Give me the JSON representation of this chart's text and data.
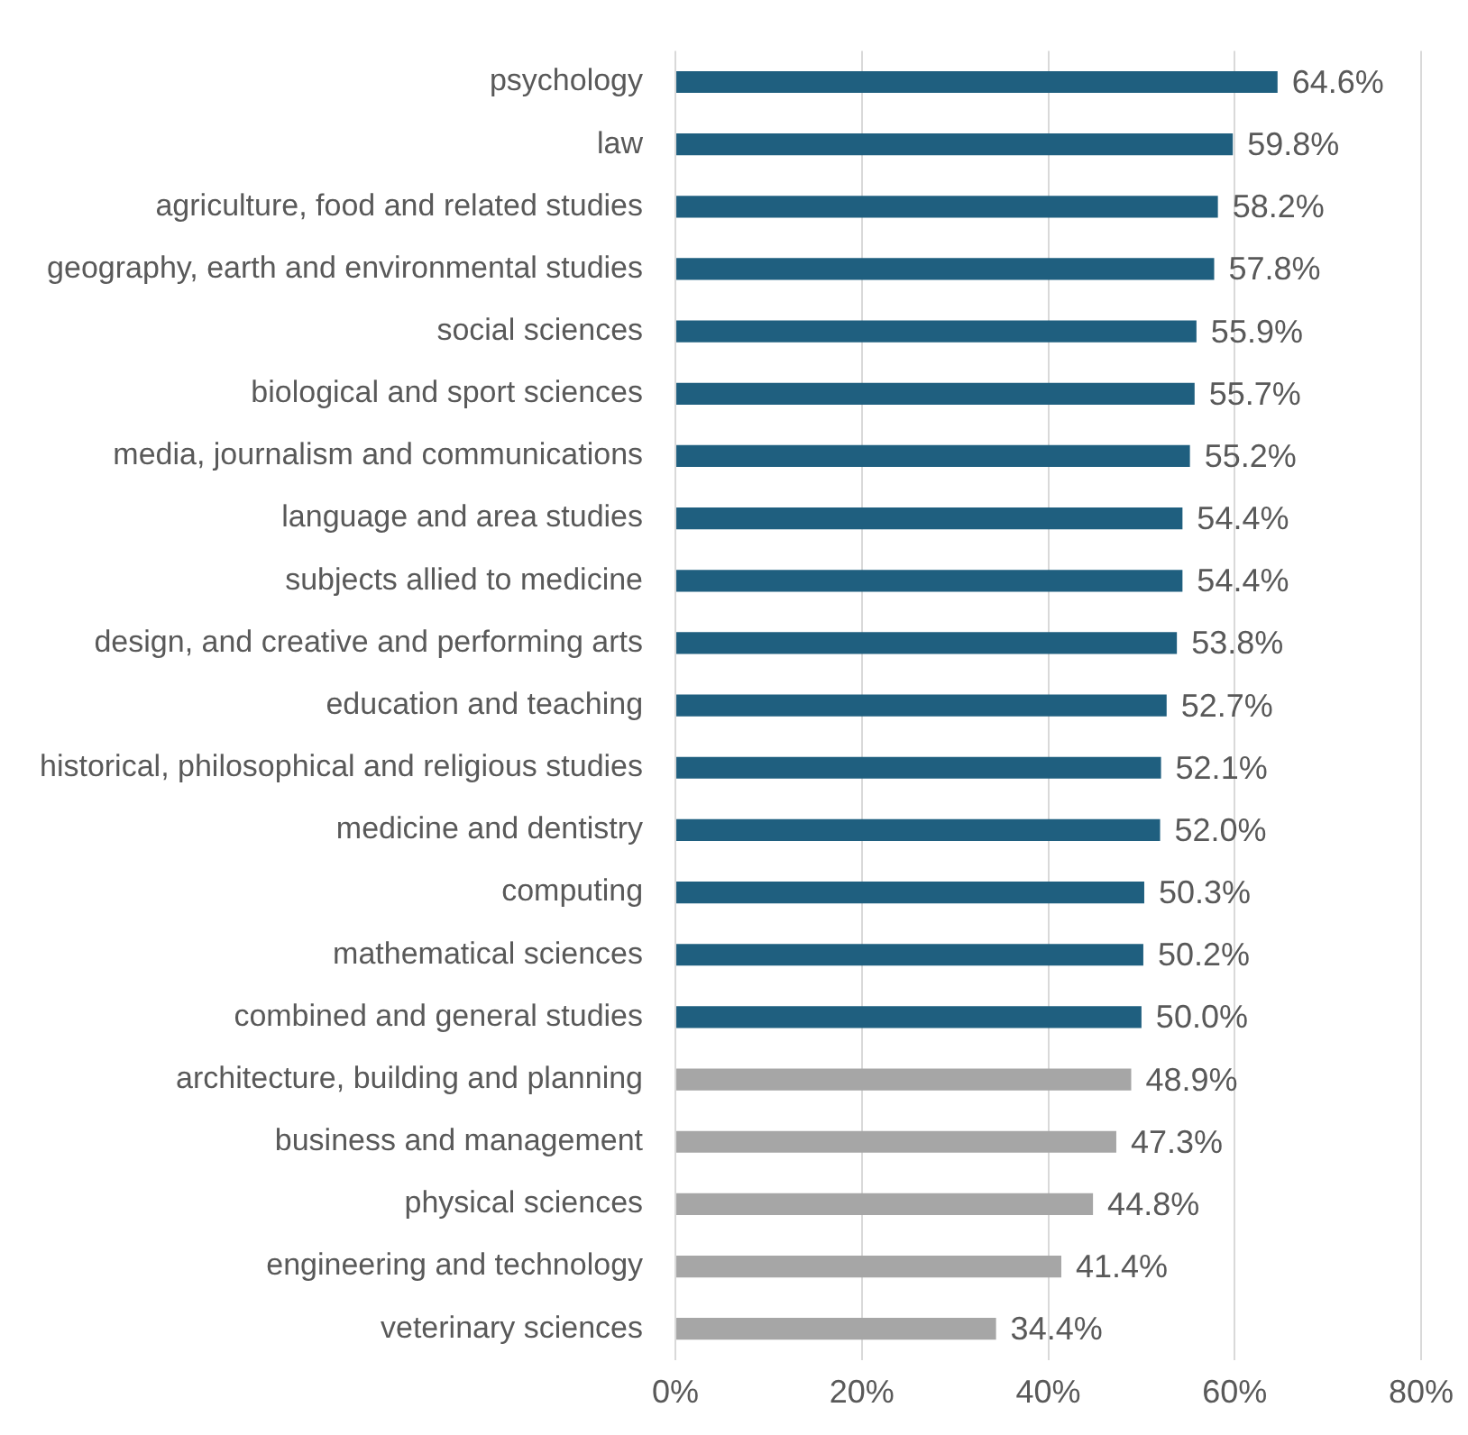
{
  "chart_data": {
    "type": "bar",
    "orientation": "horizontal",
    "categories": [
      "psychology",
      "law",
      "agriculture, food and related studies",
      "geography, earth and environmental studies",
      "social sciences",
      "biological and sport sciences",
      "media, journalism and communications",
      "language and area studies",
      "subjects allied to medicine",
      "design, and creative and performing arts",
      "education and teaching",
      "historical, philosophical and religious studies",
      "medicine and dentistry",
      "computing",
      "mathematical sciences",
      "combined and general studies",
      "architecture, building and planning",
      "business and management",
      "physical sciences",
      "engineering and technology",
      "veterinary sciences"
    ],
    "values": [
      64.6,
      59.8,
      58.2,
      57.8,
      55.9,
      55.7,
      55.2,
      54.4,
      54.4,
      53.8,
      52.7,
      52.1,
      52.0,
      50.3,
      50.2,
      50.0,
      48.9,
      47.3,
      44.8,
      41.4,
      34.4
    ],
    "value_labels": [
      "64.6%",
      "59.8%",
      "58.2%",
      "57.8%",
      "55.9%",
      "55.7%",
      "55.2%",
      "54.4%",
      "54.4%",
      "53.8%",
      "52.7%",
      "52.1%",
      "52.0%",
      "50.3%",
      "50.2%",
      "50.0%",
      "48.9%",
      "47.3%",
      "44.8%",
      "41.4%",
      "34.4%"
    ],
    "colors": [
      "#1f5f7f",
      "#1f5f7f",
      "#1f5f7f",
      "#1f5f7f",
      "#1f5f7f",
      "#1f5f7f",
      "#1f5f7f",
      "#1f5f7f",
      "#1f5f7f",
      "#1f5f7f",
      "#1f5f7f",
      "#1f5f7f",
      "#1f5f7f",
      "#1f5f7f",
      "#1f5f7f",
      "#1f5f7f",
      "#a6a6a6",
      "#a6a6a6",
      "#a6a6a6",
      "#a6a6a6",
      "#a6a6a6"
    ],
    "xlim": [
      0,
      80
    ],
    "xticks": [
      {
        "value": 0,
        "label": "0%"
      },
      {
        "value": 20,
        "label": "20%"
      },
      {
        "value": 40,
        "label": "40%"
      },
      {
        "value": 60,
        "label": "60%"
      },
      {
        "value": 80,
        "label": "80%"
      }
    ],
    "grid": "x",
    "legend": false
  }
}
